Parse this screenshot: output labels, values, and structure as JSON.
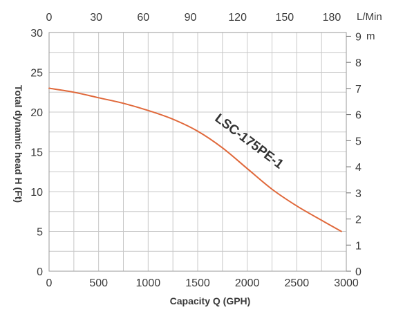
{
  "chart_data": {
    "type": "line",
    "title": "",
    "xlabel": "Capacity Q (GPH)",
    "ylabel": "Total dynamic head H (Ft)",
    "xlim": [
      0,
      3000
    ],
    "ylim": [
      0,
      30
    ],
    "x_ticks": [
      "0",
      "500",
      "1000",
      "1500",
      "2000",
      "2500",
      "3000"
    ],
    "y_ticks": [
      "0",
      "5",
      "10",
      "15",
      "20",
      "25",
      "30"
    ],
    "top_axis": {
      "unit": "L/Min",
      "ticks": [
        "0",
        "30",
        "60",
        "90",
        "120",
        "150",
        "180"
      ],
      "values": [
        0,
        30,
        60,
        90,
        120,
        150,
        180
      ]
    },
    "right_axis": {
      "unit": "m",
      "ticks": [
        "0",
        "1",
        "2",
        "3",
        "4",
        "5",
        "6",
        "7",
        "8",
        "9"
      ],
      "values": [
        0,
        1,
        2,
        3,
        4,
        5,
        6,
        7,
        8,
        9
      ]
    },
    "grid": true,
    "series": [
      {
        "name": "LSC-175PE-1",
        "color": "#e0683a",
        "x": [
          0,
          250,
          500,
          750,
          1000,
          1250,
          1500,
          1750,
          2000,
          2250,
          2500,
          2750,
          2950
        ],
        "y": [
          23,
          22.5,
          21.8,
          21.1,
          20.2,
          19.1,
          17.6,
          15.5,
          12.9,
          10.3,
          8.2,
          6.4,
          5.0
        ]
      }
    ]
  }
}
